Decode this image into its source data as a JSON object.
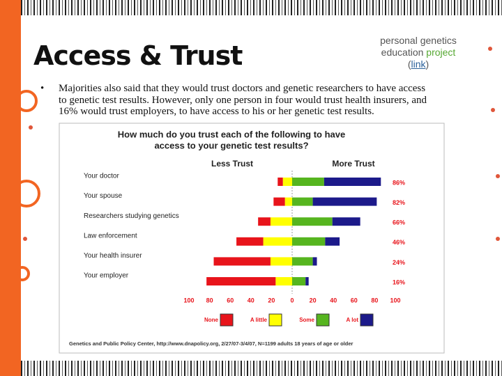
{
  "slide": {
    "title": "Access & Trust",
    "top_note": {
      "part1": "personal genetics education",
      "part2": "project",
      "part3": "(",
      "link": "link",
      "part4": ")"
    },
    "bullet": [
      "Majorities also said that they would trust doctors and genetic researchers to have access",
      "to genetic test results. However, only one person in four would trust health insurers, and",
      "16% would trust employers, to have access to his or her genetic test results."
    ]
  },
  "chart_data": {
    "type": "diverging_bar",
    "title": [
      "How much do you trust each of the following to have",
      "access to your genetic test results?"
    ],
    "left_header": "Less Trust",
    "right_header": "More Trust",
    "categories": [
      "Your doctor",
      "Your spouse",
      "Researchers studying genetics",
      "Law enforcement",
      "Your health insurer",
      "Your employer"
    ],
    "series": [
      {
        "name": "None",
        "color": "#e8141b",
        "direction": "left",
        "values": [
          5,
          11,
          12,
          26,
          55,
          67
        ]
      },
      {
        "name": "A little",
        "color": "#ffff00",
        "direction": "left",
        "values": [
          9,
          7,
          21,
          28,
          21,
          16
        ]
      },
      {
        "name": "Some",
        "color": "#56b51f",
        "direction": "right",
        "values": [
          31,
          20,
          39,
          32,
          20,
          13
        ]
      },
      {
        "name": "A lot",
        "color": "#1c1a8a",
        "direction": "right",
        "values": [
          55,
          62,
          27,
          14,
          4,
          3
        ]
      }
    ],
    "trust_totals": {
      "values": [
        86,
        82,
        66,
        46,
        24,
        16
      ],
      "value_labels": [
        "86%",
        "82%",
        "66%",
        "46%",
        "24%",
        "16%"
      ]
    },
    "xlim": [
      -100,
      100
    ],
    "xticks": [
      {
        "value": -100,
        "label": "100"
      },
      {
        "value": -80,
        "label": "80"
      },
      {
        "value": -60,
        "label": "60"
      },
      {
        "value": -40,
        "label": "40"
      },
      {
        "value": -20,
        "label": "20"
      },
      0,
      20,
      40,
      60,
      80,
      100
    ],
    "source": "Genetics and Public Policy Center, http://www.dnapolicy.org, 2/27/07-3/4/07, N=1199 adults 18 years of age or older"
  }
}
